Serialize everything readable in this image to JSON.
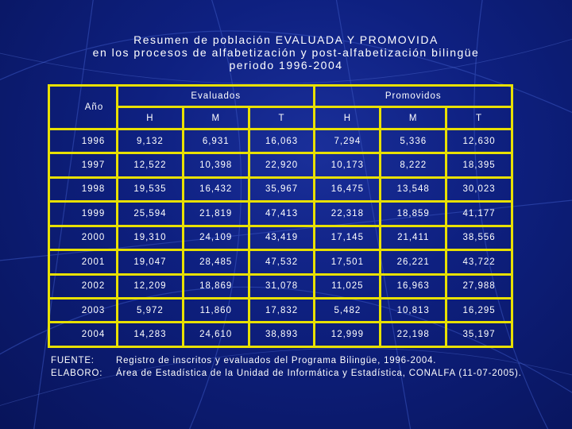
{
  "title": {
    "line1": "Resumen de población EVALUADA Y PROMOVIDA",
    "line2": "en los procesos de alfabetización y post-alfabetización bilingüe",
    "line3": "periodo 1996-2004"
  },
  "table": {
    "year_header": "Año",
    "group_evaluados": "Evaluados",
    "group_promovidos": "Promovidos",
    "subheaders": [
      "H",
      "M",
      "T",
      "H",
      "M",
      "T"
    ],
    "rows": [
      {
        "year": "1996",
        "cells": [
          "9,132",
          "6,931",
          "16,063",
          "7,294",
          "5,336",
          "12,630"
        ]
      },
      {
        "year": "1997",
        "cells": [
          "12,522",
          "10,398",
          "22,920",
          "10,173",
          "8,222",
          "18,395"
        ]
      },
      {
        "year": "1998",
        "cells": [
          "19,535",
          "16,432",
          "35,967",
          "16,475",
          "13,548",
          "30,023"
        ]
      },
      {
        "year": "1999",
        "cells": [
          "25,594",
          "21,819",
          "47,413",
          "22,318",
          "18,859",
          "41,177"
        ]
      },
      {
        "year": "2000",
        "cells": [
          "19,310",
          "24,109",
          "43,419",
          "17,145",
          "21,411",
          "38,556"
        ]
      },
      {
        "year": "2001",
        "cells": [
          "19,047",
          "28,485",
          "47,532",
          "17,501",
          "26,221",
          "43,722"
        ]
      },
      {
        "year": "2002",
        "cells": [
          "12,209",
          "18,869",
          "31,078",
          "11,025",
          "16,963",
          "27,988"
        ]
      },
      {
        "year": "2003",
        "cells": [
          "5,972",
          "11,860",
          "17,832",
          "5,482",
          "10,813",
          "16,295"
        ]
      },
      {
        "year": "2004",
        "cells": [
          "14,283",
          "24,610",
          "38,893",
          "12,999",
          "22,198",
          "35,197"
        ]
      }
    ]
  },
  "notes": {
    "fuente_label": "FUENTE:",
    "fuente_text": "Registro de inscritos y evaluados del Programa Bilingüe, 1996-2004.",
    "elaboro_label": "ELABORO:",
    "elaboro_text": "Área de Estadística de la Unidad de Informática y Estadística, CONALFA (11-07-2005)."
  },
  "colors": {
    "background": "#0e2080",
    "grid_lines": "#e8e000",
    "text": "#ffffff"
  }
}
